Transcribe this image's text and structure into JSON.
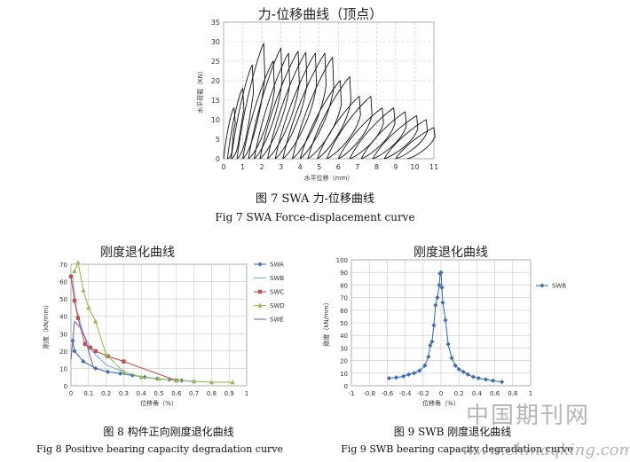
{
  "figure7": {
    "caption_cn": "图 7   SWA 力-位移曲线",
    "caption_en": "Fig 7 SWA Force-displacement curve",
    "chart_data": {
      "type": "line",
      "title": "力-位移曲线（顶点）",
      "xlabel": "水平位移（mm）",
      "ylabel": "水平荷载（KN）",
      "xlim": [
        0,
        11
      ],
      "ylim": [
        0,
        35
      ],
      "x_ticks": [
        "0",
        "1",
        "2",
        "3",
        "4",
        "5",
        "6",
        "7",
        "8",
        "9",
        "10",
        "11"
      ],
      "y_ticks": [
        "0",
        "5",
        "10",
        "15",
        "20",
        "25",
        "30",
        "35"
      ],
      "grid": true,
      "loops": [
        {
          "start": 0.0,
          "peak_x": 0.55,
          "peak_y": 13,
          "end": 0.2
        },
        {
          "start": 0.2,
          "peak_x": 1.0,
          "peak_y": 18,
          "end": 0.4
        },
        {
          "start": 0.4,
          "peak_x": 1.5,
          "peak_y": 24,
          "end": 0.7
        },
        {
          "start": 0.7,
          "peak_x": 2.1,
          "peak_y": 29.5,
          "end": 1.0
        },
        {
          "start": 1.0,
          "peak_x": 2.6,
          "peak_y": 25,
          "end": 1.3
        },
        {
          "start": 1.3,
          "peak_x": 3.0,
          "peak_y": 28.3,
          "end": 1.6
        },
        {
          "start": 1.6,
          "peak_x": 3.4,
          "peak_y": 27,
          "end": 1.9
        },
        {
          "start": 1.9,
          "peak_x": 3.9,
          "peak_y": 27.5,
          "end": 2.3
        },
        {
          "start": 2.3,
          "peak_x": 4.3,
          "peak_y": 27.2,
          "end": 2.7
        },
        {
          "start": 2.7,
          "peak_x": 4.8,
          "peak_y": 27,
          "end": 3.1
        },
        {
          "start": 3.1,
          "peak_x": 5.3,
          "peak_y": 27,
          "end": 3.6
        },
        {
          "start": 3.6,
          "peak_x": 5.7,
          "peak_y": 26,
          "end": 4.0
        },
        {
          "start": 4.0,
          "peak_x": 6.1,
          "peak_y": 20,
          "end": 4.4
        },
        {
          "start": 4.4,
          "peak_x": 6.6,
          "peak_y": 21,
          "end": 4.9
        },
        {
          "start": 4.9,
          "peak_x": 7.1,
          "peak_y": 16,
          "end": 5.4
        },
        {
          "start": 5.4,
          "peak_x": 7.7,
          "peak_y": 16,
          "end": 6.0
        },
        {
          "start": 6.0,
          "peak_x": 8.3,
          "peak_y": 13,
          "end": 6.6
        },
        {
          "start": 6.6,
          "peak_x": 8.9,
          "peak_y": 13,
          "end": 7.2
        },
        {
          "start": 7.2,
          "peak_x": 9.5,
          "peak_y": 12,
          "end": 7.8
        },
        {
          "start": 7.8,
          "peak_x": 10.1,
          "peak_y": 11,
          "end": 8.4
        },
        {
          "start": 8.4,
          "peak_x": 10.6,
          "peak_y": 10,
          "end": 9.0
        },
        {
          "start": 9.0,
          "peak_x": 11.0,
          "peak_y": 8,
          "end": 9.6
        }
      ]
    }
  },
  "figure8": {
    "caption_cn": "图 8    构件正向刚度退化曲线",
    "caption_en": "Fig 8 Positive bearing capacity degradation curve",
    "chart_data": {
      "type": "line",
      "title": "刚度退化曲线",
      "xlabel": "位移角（%）",
      "ylabel": "刚度（kN/mm）",
      "xlim": [
        0,
        1
      ],
      "ylim": [
        0,
        70
      ],
      "x_ticks": [
        "0",
        "0.1",
        "0.2",
        "0.3",
        "0.4",
        "0.5",
        "0.6",
        "0.7",
        "0.8",
        "0.9",
        "1"
      ],
      "y_ticks": [
        "0",
        "10",
        "20",
        "30",
        "40",
        "50",
        "60",
        "70"
      ],
      "grid": true,
      "legend": "right",
      "series": [
        {
          "name": "SWA",
          "color": "#3d6fb4",
          "marker": "diamond",
          "x": [
            0.01,
            0.02,
            0.07,
            0.14,
            0.21,
            0.28,
            0.35,
            0.42,
            0.49,
            0.56,
            0.63,
            0.7
          ],
          "y": [
            26,
            20,
            14,
            10,
            8,
            7,
            6,
            5,
            4,
            3.5,
            3,
            2.5
          ]
        },
        {
          "name": "SWB",
          "color": "#6cb4e0",
          "marker": "line",
          "x": [
            0.01,
            0.03,
            0.07,
            0.12,
            0.2,
            0.3,
            0.4,
            0.5,
            0.6,
            0.7
          ],
          "y": [
            62,
            45,
            30,
            20,
            12,
            8,
            5,
            4,
            3,
            2.5
          ]
        },
        {
          "name": "SWC",
          "color": "#c0504d",
          "marker": "square",
          "x": [
            0.0,
            0.02,
            0.04,
            0.08,
            0.11,
            0.14,
            0.21,
            0.3,
            0.6
          ],
          "y": [
            63,
            49,
            39,
            24,
            22,
            20,
            17,
            14,
            3
          ]
        },
        {
          "name": "SWD",
          "color": "#9bbb59",
          "marker": "triangle",
          "x": [
            0.02,
            0.04,
            0.07,
            0.1,
            0.14,
            0.2,
            0.3,
            0.4,
            0.5,
            0.6,
            0.7,
            0.8,
            0.92
          ],
          "y": [
            66,
            71,
            55,
            45,
            37,
            18,
            8,
            5,
            4,
            3,
            2.5,
            2,
            2
          ]
        },
        {
          "name": "SWE",
          "color": "#8064a2",
          "marker": "line",
          "x": [
            0.0,
            0.02,
            0.05,
            0.08,
            0.1,
            0.13
          ],
          "y": [
            15,
            37,
            34,
            28,
            20,
            10
          ]
        }
      ]
    }
  },
  "figure9": {
    "caption_cn": "图 9    SWB 刚度退化曲线",
    "caption_en": "Fig 9 SWB bearing capacity degradation curve",
    "chart_data": {
      "type": "line",
      "title": "刚度退化曲线",
      "xlabel": "位移角（%）",
      "ylabel": "刚度（kN/mm）",
      "xlim": [
        -1,
        1
      ],
      "ylim": [
        0,
        100
      ],
      "x_ticks": [
        "-1",
        "-0.8",
        "-0.6",
        "-0.4",
        "-0.2",
        "0",
        "0.2",
        "0.4",
        "0.6",
        "0.8",
        "1"
      ],
      "y_ticks": [
        "0",
        "10",
        "20",
        "30",
        "40",
        "50",
        "60",
        "70",
        "80",
        "90",
        "100"
      ],
      "grid": true,
      "legend": "right",
      "series": [
        {
          "name": "SWB",
          "color": "#3d6fb4",
          "marker": "diamond",
          "x": [
            -0.58,
            -0.5,
            -0.42,
            -0.36,
            -0.3,
            -0.24,
            -0.18,
            -0.14,
            -0.12,
            -0.1,
            -0.08,
            -0.06,
            -0.04,
            -0.02,
            -0.01,
            0.0,
            0.01,
            0.02,
            0.05,
            0.08,
            0.12,
            0.16,
            0.2,
            0.25,
            0.3,
            0.36,
            0.42,
            0.5,
            0.58,
            0.68
          ],
          "y": [
            6,
            6.5,
            7.5,
            9,
            10,
            12,
            16,
            23,
            32,
            35,
            48,
            64,
            70,
            80,
            89,
            90,
            78,
            66,
            52,
            33,
            22,
            16,
            13,
            11,
            9,
            7,
            6,
            5,
            4,
            3
          ]
        }
      ]
    }
  },
  "watermark": {
    "line1": "中国期刊网",
    "line2": "www.chinaqking.com"
  }
}
